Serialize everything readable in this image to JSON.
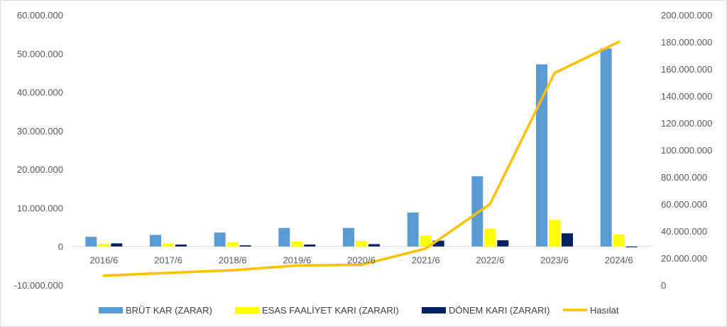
{
  "chart_data": {
    "type": "bar",
    "title": "",
    "categories": [
      "2016/6",
      "2017/6",
      "2018/6",
      "2019/6",
      "2020/6",
      "2021/6",
      "2022/6",
      "2023/6",
      "2024/6"
    ],
    "series": [
      {
        "name": "BRÜT KAR (ZARAR)",
        "type": "bar",
        "axis": "left",
        "color": "#5b9bd5",
        "values": [
          2500000,
          3000000,
          3600000,
          4800000,
          4800000,
          8800000,
          18200000,
          47200000,
          51300000
        ]
      },
      {
        "name": "ESAS FAALİYET KARI (ZARARI)",
        "type": "bar",
        "axis": "left",
        "color": "#ffff00",
        "values": [
          700000,
          800000,
          1100000,
          1300000,
          1400000,
          2800000,
          4600000,
          6900000,
          3100000
        ]
      },
      {
        "name": "DÖNEM KARI (ZARARI)",
        "type": "bar",
        "axis": "left",
        "color": "#002060",
        "values": [
          800000,
          500000,
          300000,
          500000,
          600000,
          1500000,
          1600000,
          3400000,
          -200000
        ]
      },
      {
        "name": "Hasılat",
        "type": "line",
        "axis": "right",
        "color": "#ffc000",
        "values": [
          7000000,
          9000000,
          11000000,
          14500000,
          15000000,
          27000000,
          60000000,
          157000000,
          180000000
        ]
      }
    ],
    "y_left": {
      "lim": [
        -10000000,
        60000000
      ],
      "ticks": [
        -10000000,
        0,
        10000000,
        20000000,
        30000000,
        40000000,
        50000000,
        60000000
      ],
      "tick_labels": [
        "-10.000.000",
        "0",
        "10.000.000",
        "20.000.000",
        "30.000.000",
        "40.000.000",
        "50.000.000",
        "60.000.000"
      ]
    },
    "y_right": {
      "lim": [
        0,
        200000000
      ],
      "ticks": [
        0,
        20000000,
        40000000,
        60000000,
        80000000,
        100000000,
        120000000,
        140000000,
        160000000,
        180000000,
        200000000
      ],
      "tick_labels": [
        "0",
        "20.000.000",
        "40.000.000",
        "60.000.000",
        "80.000.000",
        "100.000.000",
        "120.000.000",
        "140.000.000",
        "160.000.000",
        "180.000.000",
        "200.000.000"
      ]
    },
    "grid": false,
    "legend": "bottom",
    "category_labels_position": "at-zero-line"
  }
}
